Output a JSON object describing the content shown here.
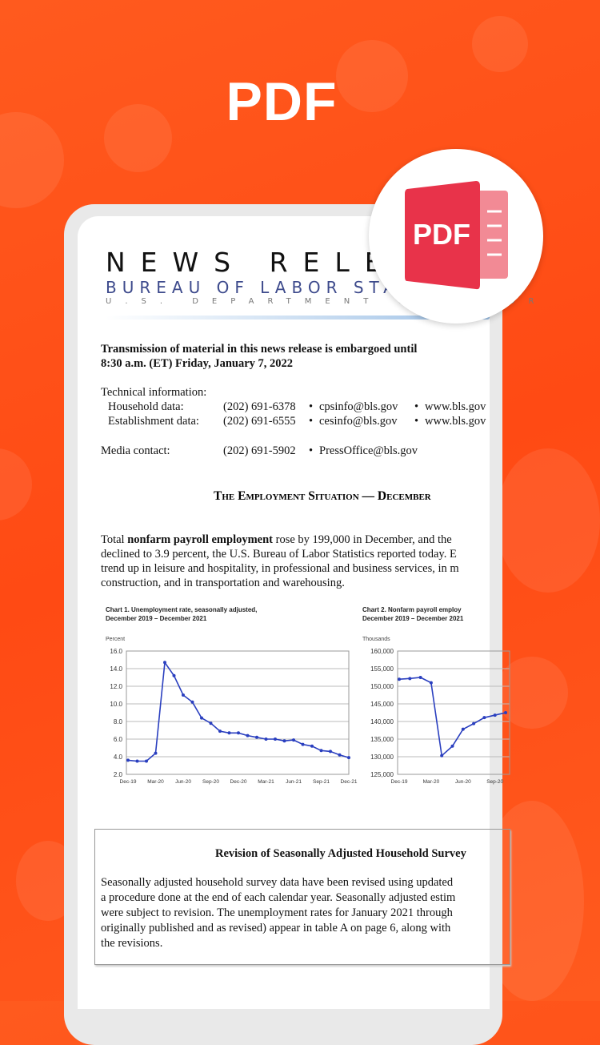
{
  "hero": {
    "title": "PDF"
  },
  "badge": {
    "icon": "pdf-file-icon",
    "label": "PDF",
    "color": "#e8334a",
    "page_color": "#f28a95"
  },
  "document": {
    "masthead": {
      "title": "NEWS RELEASE",
      "agency": "BUREAU OF LABOR STATISTICS",
      "department": "U.S. DEPARTMENT OF LABOR"
    },
    "embargo": [
      "Transmission of material in this news release is embargoed until",
      "8:30 a.m. (ET) Friday, January 7, 2022"
    ],
    "contacts": {
      "tech_label": "Technical information:",
      "rows": [
        {
          "label": "Household data:",
          "phone": "(202) 691-6378",
          "email": "cpsinfo@bls.gov",
          "web": "www.bls.gov"
        },
        {
          "label": "Establishment data:",
          "phone": "(202) 691-6555",
          "email": "cesinfo@bls.gov",
          "web": "www.bls.gov"
        }
      ],
      "media": {
        "label": "Media contact:",
        "phone": "(202) 691-5902",
        "email": "PressOffice@bls.gov"
      }
    },
    "section_title": "The Employment Situation — December",
    "paragraph": {
      "lead": "Total ",
      "bold": "nonfarm payroll employment",
      "rest1": " rose by 199,000 in December, and the",
      "lines": [
        "declined to 3.9 percent, the U.S. Bureau of Labor Statistics reported today. E",
        "trend up in leisure and hospitality, in professional and business services, in m",
        "construction, and in transportation and warehousing."
      ]
    },
    "box": {
      "title": "Revision of Seasonally Adjusted Household Survey",
      "lines": [
        "Seasonally adjusted household survey data have been revised using updated",
        "a procedure done at the end of each calendar year. Seasonally adjusted estim",
        "were subject to revision. The unemployment rates for January 2021 through",
        "originally published and as revised) appear in table A on page 6, along with",
        "the revisions."
      ]
    }
  },
  "chart_data": [
    {
      "type": "line",
      "title": "Chart 1. Unemployment rate, seasonally adjusted,",
      "subtitle": "December 2019 – December 2021",
      "ylabel": "Percent",
      "ylim": [
        2,
        16
      ],
      "yticks": [
        "2.0",
        "4.0",
        "6.0",
        "8.0",
        "10.0",
        "12.0",
        "14.0",
        "16.0"
      ],
      "xticks": [
        "Dec-19",
        "Mar-20",
        "Jun-20",
        "Sep-20",
        "Dec-20",
        "Mar-21",
        "Jun-21",
        "Sep-21",
        "Dec-21"
      ],
      "values": [
        3.6,
        3.5,
        3.5,
        4.4,
        14.7,
        13.2,
        11.0,
        10.2,
        8.4,
        7.8,
        6.9,
        6.7,
        6.7,
        6.4,
        6.2,
        6.0,
        6.0,
        5.8,
        5.9,
        5.4,
        5.2,
        4.7,
        4.6,
        4.2,
        3.9
      ],
      "color": "#2a3fbf",
      "grid": true
    },
    {
      "type": "line",
      "title": "Chart 2. Nonfarm payroll employ",
      "subtitle": "December 2019 – December 2021",
      "ylabel": "Thousands",
      "ylim": [
        125000,
        160000
      ],
      "yticks": [
        "125,000",
        "130,000",
        "135,000",
        "140,000",
        "145,000",
        "150,000",
        "155,000",
        "160,000"
      ],
      "xticks": [
        "Dec-19",
        "Mar-20",
        "Jun-20",
        "Sep-20"
      ],
      "values": [
        152000,
        152200,
        152500,
        151000,
        130300,
        133000,
        137800,
        139400,
        141100,
        141800,
        142500
      ],
      "color": "#2a3fbf",
      "grid": true
    }
  ]
}
